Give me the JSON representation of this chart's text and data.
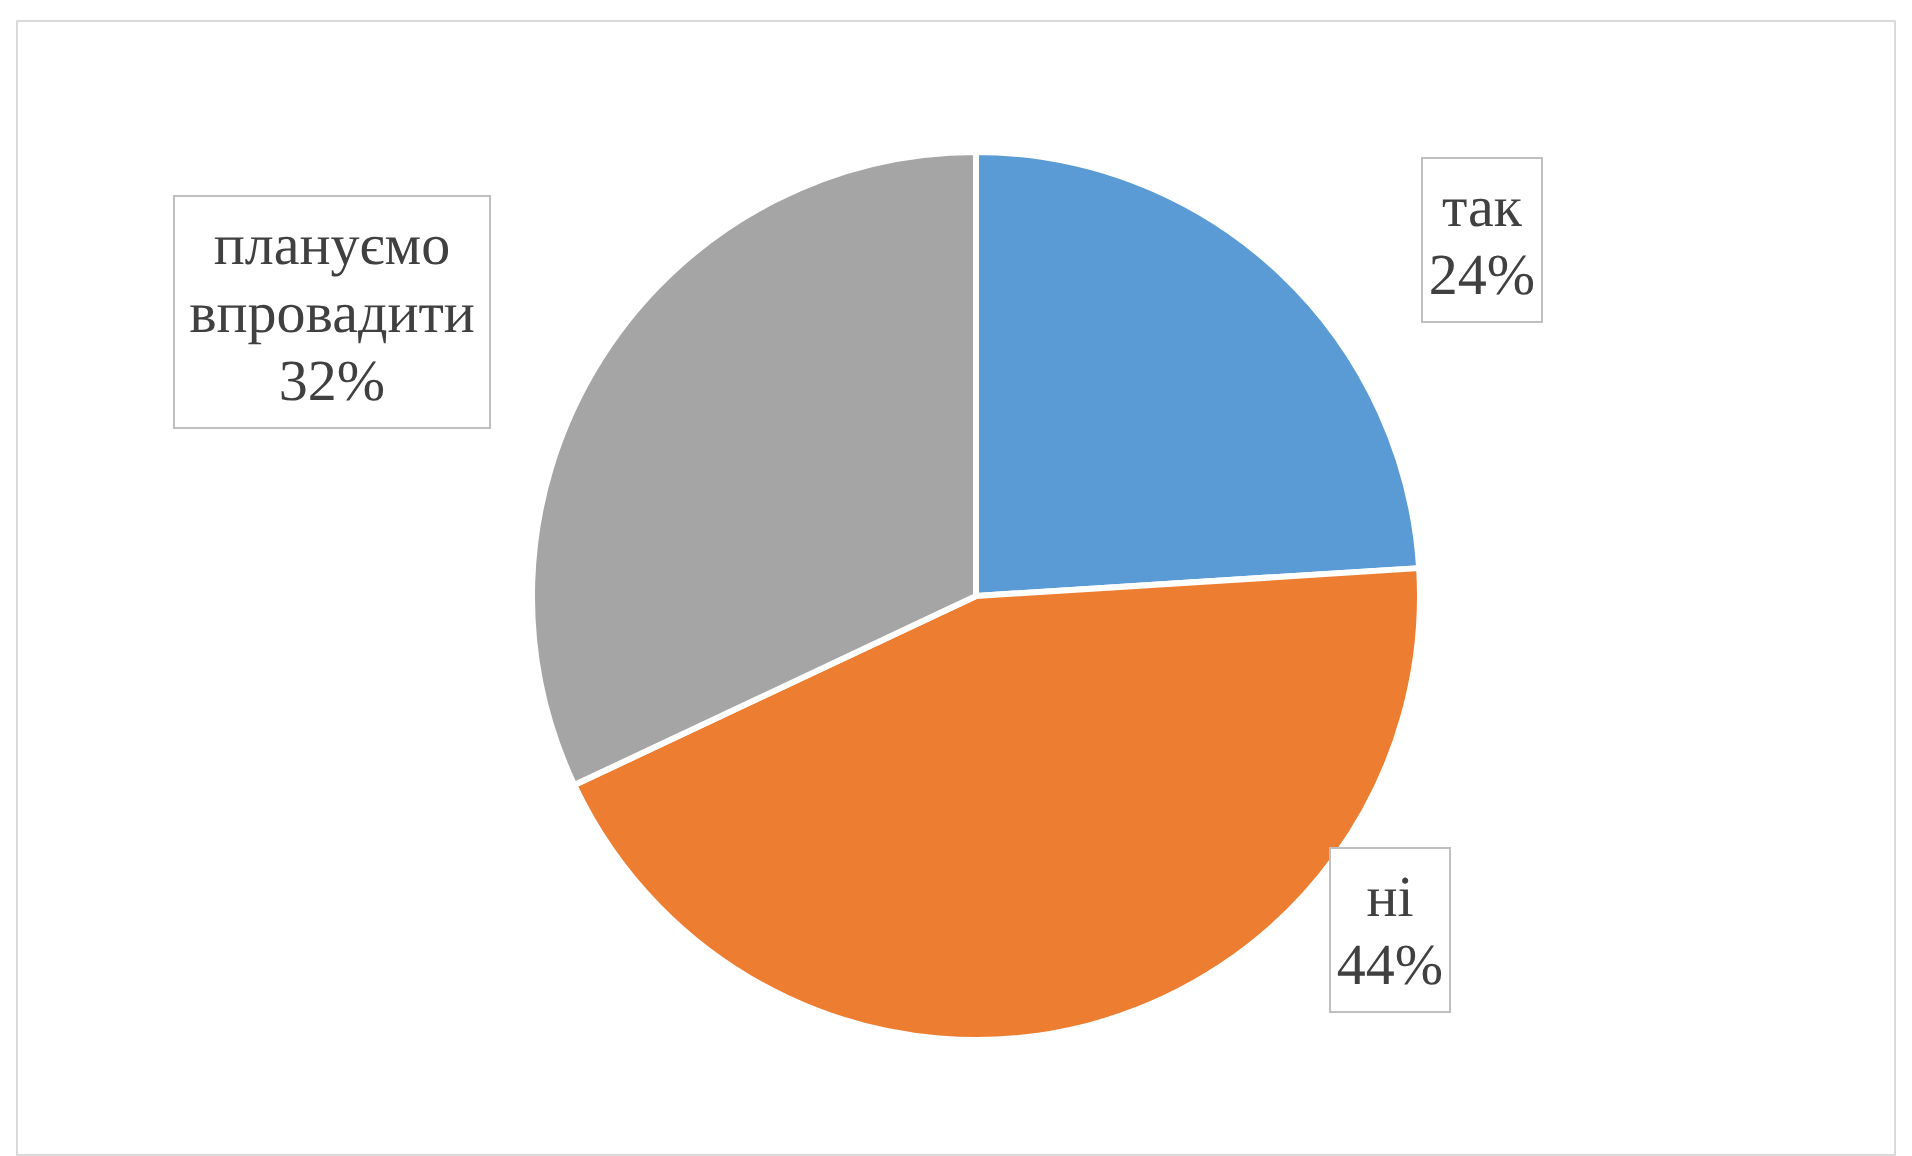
{
  "chart_data": {
    "type": "pie",
    "categories": [
      "так",
      "ні",
      "плануємо впровадити"
    ],
    "values": [
      24,
      44,
      32
    ],
    "colors": [
      "#5b9bd5",
      "#ed7d31",
      "#a5a5a5"
    ],
    "value_labels": [
      "24%",
      "44%",
      "32%"
    ]
  }
}
